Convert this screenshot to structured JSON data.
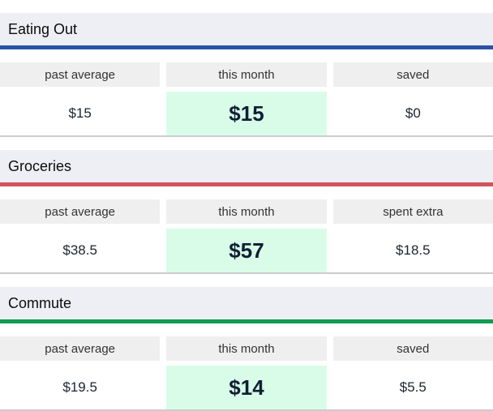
{
  "colors": {
    "highlight_bg": "#d9fce9",
    "section_header_bg": "#edeff4",
    "column_header_bg": "#efefef",
    "divider": "#cccccc"
  },
  "sections": [
    {
      "title": "Eating Out",
      "accent_color": "#2a53a5",
      "columns": [
        "past average",
        "this month",
        "saved"
      ],
      "values": [
        "$15",
        "$15",
        "$0"
      ]
    },
    {
      "title": "Groceries",
      "accent_color": "#d3545e",
      "columns": [
        "past average",
        "this month",
        "spent extra"
      ],
      "values": [
        "$38.5",
        "$57",
        "$18.5"
      ]
    },
    {
      "title": "Commute",
      "accent_color": "#0f9b50",
      "columns": [
        "past average",
        "this month",
        "saved"
      ],
      "values": [
        "$19.5",
        "$14",
        "$5.5"
      ]
    }
  ]
}
